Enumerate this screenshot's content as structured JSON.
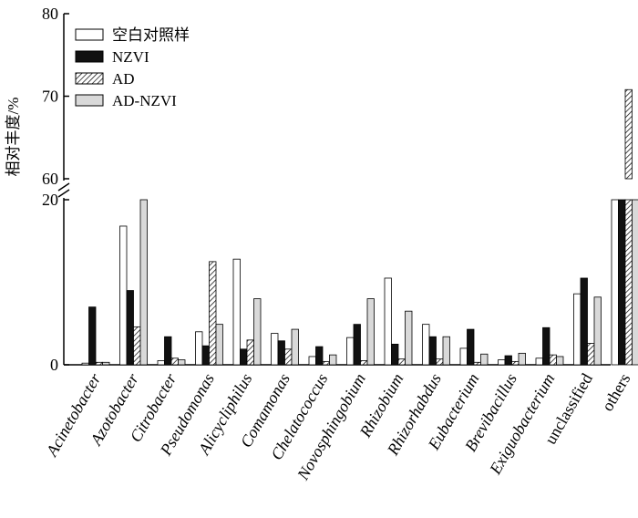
{
  "chart_data": {
    "type": "bar",
    "ylabel": "相对丰度/%",
    "y_ticks_lower": [
      "0",
      "20"
    ],
    "y_ticks_upper": [
      "60",
      "70",
      "80"
    ],
    "ylim_lower": [
      0,
      20
    ],
    "ylim_upper": [
      60,
      80
    ],
    "axis_break": [
      20,
      60
    ],
    "legend_position": "top-left",
    "grid": false,
    "categories": [
      "Acinetobacter",
      "Azotobacter",
      "Citrobacter",
      "Pseudomonas",
      "Alicycliphilus",
      "Comamonas",
      "Chelatococcus",
      "Novosphingobium",
      "Rhizobium",
      "Rhizorhabdus",
      "Eubacterium",
      "Brevibacillus",
      "Exiguobacterium",
      "unclassified",
      "others"
    ],
    "upright_categories": [
      "unclassified",
      "others"
    ],
    "series": [
      {
        "name": "空白对照样",
        "fill": "white",
        "values": [
          0.2,
          16.8,
          0.5,
          4.0,
          12.8,
          3.8,
          1.0,
          3.3,
          10.5,
          4.9,
          2.0,
          0.6,
          0.8,
          8.6,
          20.0
        ]
      },
      {
        "name": "NZVI",
        "fill": "black",
        "values": [
          7.0,
          9.0,
          3.4,
          2.3,
          1.9,
          2.9,
          2.2,
          4.9,
          2.5,
          3.4,
          4.3,
          1.1,
          4.5,
          10.5,
          20.0
        ]
      },
      {
        "name": "AD",
        "fill": "hatch",
        "values": [
          0.3,
          4.6,
          0.8,
          12.5,
          3.0,
          1.9,
          0.4,
          0.5,
          0.7,
          0.7,
          0.3,
          0.4,
          1.2,
          2.6,
          70.8
        ]
      },
      {
        "name": "AD-NZVI",
        "fill": "lightgray",
        "values": [
          0.3,
          20.0,
          0.6,
          4.9,
          8.0,
          4.3,
          1.2,
          8.0,
          6.5,
          3.4,
          1.3,
          1.4,
          1.0,
          8.2,
          20.0
        ]
      }
    ]
  }
}
